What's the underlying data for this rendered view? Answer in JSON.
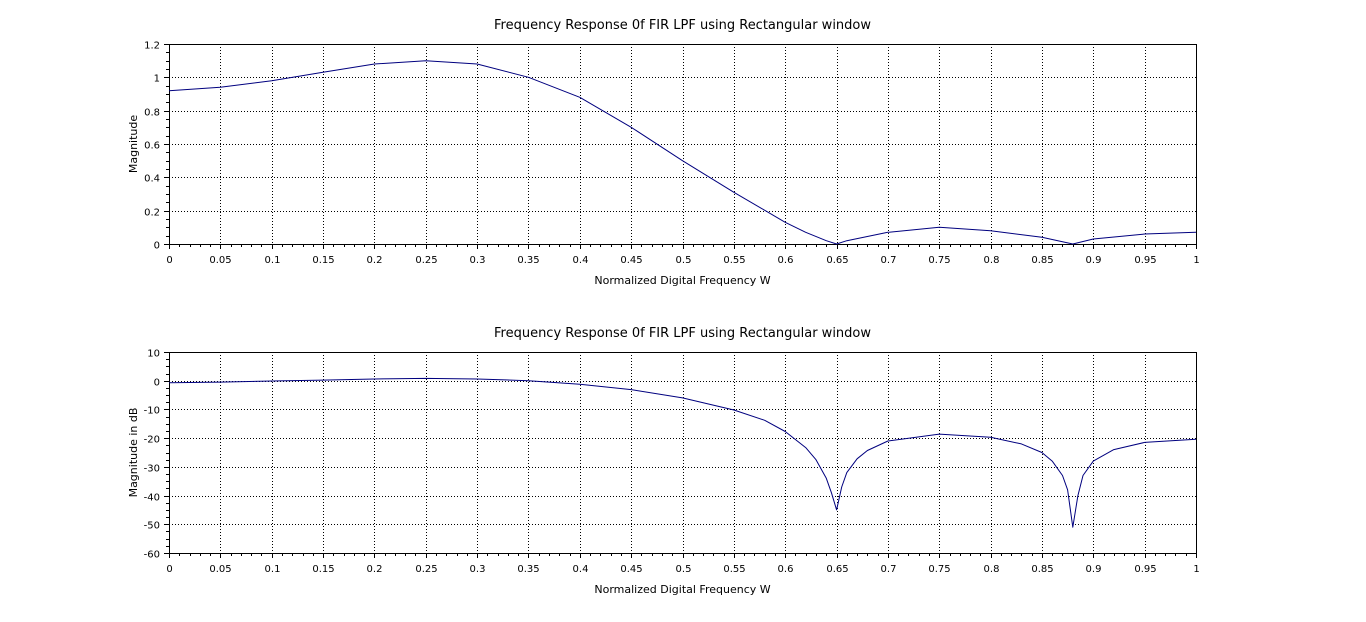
{
  "chart_data": [
    {
      "type": "line",
      "title": "Frequency Response 0f FIR LPF using Rectangular window",
      "xlabel": "Normalized Digital Frequency W",
      "ylabel": "Magnitude",
      "xlim": [
        0,
        1
      ],
      "ylim": [
        0,
        1.2
      ],
      "x_ticks": [
        0,
        0.05,
        0.1,
        0.15,
        0.2,
        0.25,
        0.3,
        0.35,
        0.4,
        0.45,
        0.5,
        0.55,
        0.6,
        0.65,
        0.7,
        0.75,
        0.8,
        0.85,
        0.9,
        0.95,
        1
      ],
      "x_tick_labels": [
        "0",
        "0.05",
        "0.1",
        "0.15",
        "0.2",
        "0.25",
        "0.3",
        "0.35",
        "0.4",
        "0.45",
        "0.5",
        "0.55",
        "0.6",
        "0.65",
        "0.7",
        "0.75",
        "0.8",
        "0.85",
        "0.9",
        "0.95",
        "1"
      ],
      "y_ticks": [
        0,
        0.2,
        0.4,
        0.6,
        0.8,
        1,
        1.2
      ],
      "y_tick_labels": [
        "0",
        "0.2",
        "0.4",
        "0.6",
        "0.8",
        "1",
        "1.2"
      ],
      "grid": true,
      "line_color": "#00007f",
      "series": [
        {
          "x": [
            0,
            0.05,
            0.1,
            0.15,
            0.2,
            0.25,
            0.3,
            0.35,
            0.4,
            0.45,
            0.5,
            0.55,
            0.6,
            0.62,
            0.64,
            0.65,
            0.66,
            0.7,
            0.75,
            0.8,
            0.85,
            0.88,
            0.9,
            0.95,
            1
          ],
          "y": [
            0.92,
            0.94,
            0.98,
            1.03,
            1.08,
            1.1,
            1.08,
            1.0,
            0.88,
            0.7,
            0.5,
            0.31,
            0.13,
            0.07,
            0.02,
            0.0,
            0.02,
            0.07,
            0.1,
            0.08,
            0.04,
            0.0,
            0.03,
            0.06,
            0.07
          ]
        }
      ]
    },
    {
      "type": "line",
      "title": "Frequency Response 0f FIR LPF using Rectangular window",
      "xlabel": "Normalized Digital Frequency W",
      "ylabel": "Magnitude in dB",
      "xlim": [
        0,
        1
      ],
      "ylim": [
        -60,
        10
      ],
      "x_ticks": [
        0,
        0.05,
        0.1,
        0.15,
        0.2,
        0.25,
        0.3,
        0.35,
        0.4,
        0.45,
        0.5,
        0.55,
        0.6,
        0.65,
        0.7,
        0.75,
        0.8,
        0.85,
        0.9,
        0.95,
        1
      ],
      "x_tick_labels": [
        "0",
        "0.05",
        "0.1",
        "0.15",
        "0.2",
        "0.25",
        "0.3",
        "0.35",
        "0.4",
        "0.45",
        "0.5",
        "0.55",
        "0.6",
        "0.65",
        "0.7",
        "0.75",
        "0.8",
        "0.85",
        "0.9",
        "0.95",
        "1"
      ],
      "y_ticks": [
        -60,
        -50,
        -40,
        -30,
        -20,
        -10,
        0,
        10
      ],
      "y_tick_labels": [
        "-60",
        "-50",
        "-40",
        "-30",
        "-20",
        "-10",
        "0",
        "10"
      ],
      "grid": true,
      "line_color": "#00007f",
      "series": [
        {
          "x": [
            0,
            0.05,
            0.1,
            0.15,
            0.2,
            0.25,
            0.3,
            0.35,
            0.4,
            0.45,
            0.5,
            0.55,
            0.58,
            0.6,
            0.62,
            0.63,
            0.64,
            0.645,
            0.65,
            0.655,
            0.66,
            0.67,
            0.68,
            0.7,
            0.75,
            0.8,
            0.83,
            0.85,
            0.86,
            0.87,
            0.875,
            0.88,
            0.885,
            0.89,
            0.9,
            0.92,
            0.95,
            1
          ],
          "y": [
            -0.7,
            -0.5,
            -0.1,
            0.2,
            0.6,
            0.8,
            0.6,
            0.0,
            -1.2,
            -3.1,
            -6.0,
            -10.2,
            -13.8,
            -17.7,
            -23.3,
            -27.5,
            -34.0,
            -39.0,
            -45.0,
            -37.0,
            -32.0,
            -27.2,
            -24.3,
            -21.0,
            -18.6,
            -19.7,
            -22.0,
            -25.0,
            -28.0,
            -33.0,
            -38.0,
            -51.0,
            -40.0,
            -33.0,
            -28.0,
            -24.0,
            -21.5,
            -20.4
          ]
        }
      ]
    }
  ]
}
